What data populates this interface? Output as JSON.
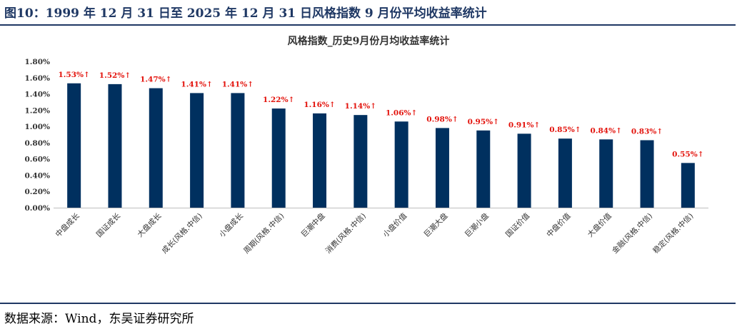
{
  "header": {
    "title": "图10：1999 年 12 月 31 日至 2025 年 12 月 31 日风格指数 9 月份平均收益率统计"
  },
  "footer": {
    "source": "数据来源：Wind，东吴证券研究所"
  },
  "colors": {
    "bar": "#00305f",
    "label": "#e3120b",
    "header_rule": "#1f3864"
  },
  "chart_data": {
    "type": "bar",
    "title": "风格指数_历史9月份月均收益率统计",
    "xlabel": "",
    "ylabel": "",
    "ylim": [
      0,
      1.8
    ],
    "yticks": [
      "0.00%",
      "0.20%",
      "0.40%",
      "0.60%",
      "0.80%",
      "1.00%",
      "1.20%",
      "1.40%",
      "1.60%",
      "1.80%"
    ],
    "grid": false,
    "categories": [
      "中盘成长",
      "国证成长",
      "大盘成长",
      "成长(风格.中信)",
      "小盘成长",
      "周期(风格.中信)",
      "巨潮中盘",
      "消费(风格.中信)",
      "小盘价值",
      "巨潮大盘",
      "巨潮小盘",
      "国证价值",
      "中盘价值",
      "大盘价值",
      "金融(风格.中信)",
      "稳定(风格.中信)"
    ],
    "values": [
      1.53,
      1.52,
      1.47,
      1.41,
      1.41,
      1.22,
      1.16,
      1.14,
      1.06,
      0.98,
      0.95,
      0.91,
      0.85,
      0.84,
      0.83,
      0.55
    ],
    "data_labels": [
      "1.53%↑",
      "1.52%↑",
      "1.47%↑",
      "1.41%↑",
      "1.41%↑",
      "1.22%↑",
      "1.16%↑",
      "1.14%↑",
      "1.06%↑",
      "0.98%↑",
      "0.95%↑",
      "0.91%↑",
      "0.85%↑",
      "0.84%↑",
      "0.83%↑",
      "0.55%↑"
    ]
  }
}
